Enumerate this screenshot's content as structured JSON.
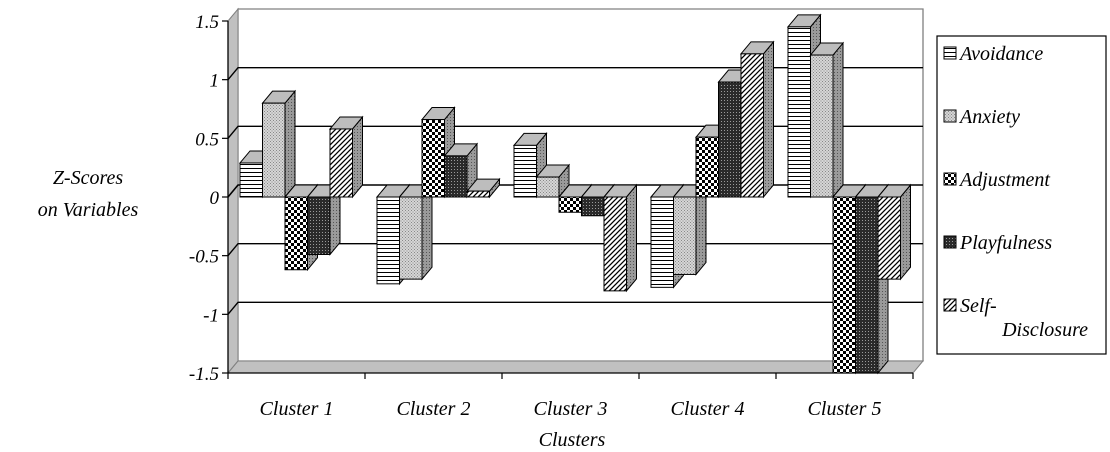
{
  "chart_data": {
    "type": "bar",
    "categories": [
      "Cluster 1",
      "Cluster 2",
      "Cluster 3",
      "Cluster 4",
      "Cluster 5"
    ],
    "series": [
      {
        "name": "Avoidance",
        "legend_lines": [
          "Avoidance"
        ],
        "values": [
          0.29,
          -0.74,
          0.44,
          -0.77,
          1.45
        ]
      },
      {
        "name": "Anxiety",
        "legend_lines": [
          "Anxiety"
        ],
        "values": [
          0.8,
          -0.7,
          0.17,
          -0.66,
          1.21
        ]
      },
      {
        "name": "Adjustment",
        "legend_lines": [
          "Adjustment"
        ],
        "values": [
          -0.62,
          0.66,
          -0.13,
          0.51,
          -1.5
        ]
      },
      {
        "name": "Playfulness",
        "legend_lines": [
          "Playfulness"
        ],
        "values": [
          -0.49,
          0.35,
          -0.16,
          0.98,
          -1.5
        ]
      },
      {
        "name": "Self-Disclosure",
        "legend_lines": [
          "Self-",
          "Disclosure"
        ],
        "values": [
          0.58,
          0.05,
          -0.8,
          1.22,
          -0.7
        ]
      }
    ],
    "xlabel": "Clusters",
    "ylabel_lines": [
      "Z-Scores",
      "on Variables"
    ],
    "ylim": [
      -1.5,
      1.5
    ],
    "yticks": [
      1.5,
      1,
      0.5,
      0,
      -0.5,
      -1,
      -1.5
    ],
    "ytick_labels": [
      "1.5",
      "1",
      "0.5",
      "0",
      "-0.5",
      "-1",
      "-1.5"
    ],
    "grid": true,
    "legend_position": "right",
    "style": "3d-clustered-bar-with-patterns"
  }
}
